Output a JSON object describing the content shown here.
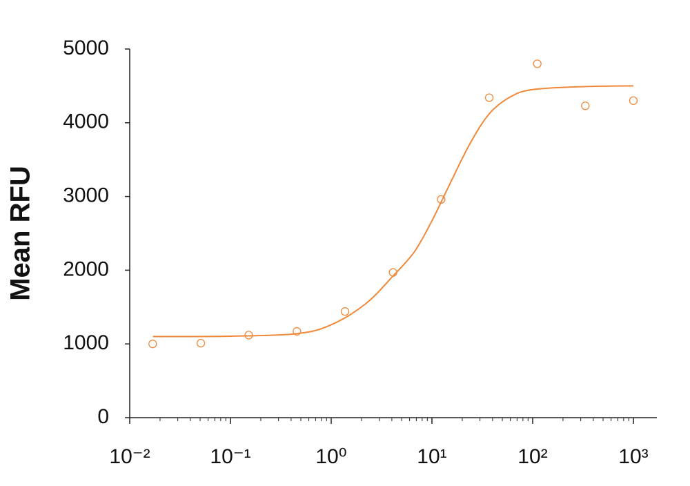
{
  "chart_data": {
    "type": "scatter",
    "y_label": "Mean RFU",
    "xscale": "log",
    "xlim": [
      0.01,
      1710
    ],
    "ylim": [
      0,
      5000
    ],
    "xticks": [
      {
        "value": 0.01,
        "label": "10⁻²"
      },
      {
        "value": 0.1,
        "label": "10⁻¹"
      },
      {
        "value": 1,
        "label": "10⁰"
      },
      {
        "value": 10,
        "label": "10¹"
      },
      {
        "value": 100,
        "label": "10²"
      },
      {
        "value": 1000,
        "label": "10³"
      }
    ],
    "x_minor_ticks": [
      0.02,
      0.03,
      0.04,
      0.05,
      0.06,
      0.07,
      0.08,
      0.09,
      0.2,
      0.3,
      0.4,
      0.5,
      0.6,
      0.7,
      0.8,
      0.9,
      2,
      3,
      4,
      5,
      6,
      7,
      8,
      9,
      20,
      30,
      40,
      50,
      60,
      70,
      80,
      90,
      200,
      300,
      400,
      500,
      600,
      700,
      800,
      900
    ],
    "yticks": [
      0,
      1000,
      2000,
      3000,
      4000,
      5000
    ],
    "color": "#f0883a",
    "points": {
      "x": [
        0.0169,
        0.0508,
        0.152,
        0.457,
        1.372,
        4.115,
        12.35,
        37.04,
        111.1,
        333.3,
        1000
      ],
      "values": [
        1000,
        1010,
        1120,
        1170,
        1440,
        1970,
        2960,
        4340,
        4800,
        4230,
        4300
      ]
    },
    "fit": {
      "x": [
        0.017,
        0.1,
        0.46,
        1,
        2.2,
        4.1,
        6.7,
        10,
        14.7,
        23.5,
        37,
        60,
        100,
        317,
        1000
      ],
      "values": [
        1100,
        1105,
        1140,
        1260,
        1545,
        1920,
        2250,
        2670,
        3140,
        3700,
        4120,
        4350,
        4450,
        4490,
        4500
      ]
    }
  }
}
